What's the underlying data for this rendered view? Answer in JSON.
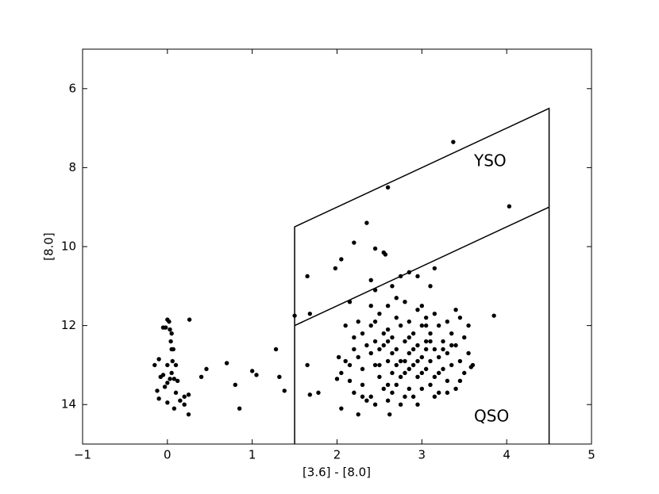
{
  "chart_data": {
    "type": "scatter",
    "xlabel": "[3.6] - [8.0]",
    "ylabel": "[8.0]",
    "xlim": [
      -1,
      5
    ],
    "ylim": [
      15,
      5
    ],
    "xticks": [
      {
        "value": -1,
        "label": "−1"
      },
      0,
      1,
      2,
      3,
      4,
      5
    ],
    "yticks": [
      6,
      8,
      10,
      12,
      14
    ],
    "color": "#000000",
    "annotations": [
      "YSO",
      "QSO"
    ],
    "lines": [
      {
        "x": [
          1.5,
          1.5,
          4.5,
          4.5
        ],
        "y": [
          15,
          9.5,
          6.5,
          15
        ]
      },
      {
        "x": [
          1.5,
          4.5
        ],
        "y": [
          12,
          9
        ]
      }
    ],
    "x": [
      0,
      0.02,
      -0.02,
      0.03,
      0.05,
      -0.05,
      0.26,
      0.05,
      0.07,
      0.04,
      -0.1,
      0.06,
      -0.15,
      0,
      0.1,
      0.05,
      -0.05,
      0.03,
      -0.08,
      0.08,
      0,
      -0.03,
      0.12,
      -0.12,
      0.1,
      0.2,
      0.25,
      0.15,
      -0.1,
      0,
      0.08,
      0.2,
      0.25,
      0.4,
      0.46,
      0.7,
      0.8,
      0.85,
      1,
      1.05,
      1.28,
      1.32,
      1.38,
      1.5,
      3.37,
      2.6,
      4.03,
      2.35,
      2.2,
      2.45,
      2.55,
      2.57,
      2.05,
      1.98,
      1.65,
      2.95,
      3.15,
      2.75,
      2.85,
      3.1,
      2.4,
      2.45,
      2.65,
      2.15,
      1.68,
      3.85,
      1.65,
      1.68,
      1.78,
      2,
      2.02,
      2.05,
      2.25,
      2.62,
      3.6,
      3.58,
      2.1,
      2.2,
      2.25,
      2.3,
      2.3,
      2.35,
      2.4,
      2.4,
      2.45,
      2.45,
      2.5,
      2.5,
      2.5,
      2.55,
      2.55,
      2.6,
      2.6,
      2.6,
      2.65,
      2.65,
      2.7,
      2.7,
      2.7,
      2.75,
      2.75,
      2.75,
      2.8,
      2.8,
      2.8,
      2.85,
      2.85,
      2.85,
      2.9,
      2.9,
      2.9,
      2.95,
      2.95,
      2.95,
      3,
      3,
      3,
      3.05,
      3.05,
      3.05,
      3.1,
      3.1,
      3.1,
      3.15,
      3.15,
      3.15,
      3.2,
      3.2,
      3.2,
      3.25,
      3.25,
      3.3,
      3.3,
      3.3,
      3.35,
      3.35,
      3.4,
      3.4,
      3.45,
      3.45,
      3.5,
      3.5,
      2.15,
      2.2,
      2.35,
      2.25,
      2.4,
      2.6,
      2.65,
      2.7,
      2.8,
      2.85,
      2.95,
      3.05,
      3,
      3.1,
      2.55,
      2.9,
      2.75,
      3.25,
      3.35,
      2.5,
      2.65,
      3.2,
      2.45,
      3.4,
      3,
      2.7,
      2.4,
      3.55,
      3.55,
      3.45,
      2.3,
      2.2,
      2.1,
      2.05,
      2.15,
      2.3,
      2.45,
      2.6,
      2.8,
      2.95,
      3.15,
      3.3,
      2.85,
      3.05,
      2.6
    ],
    "y": [
      11.85,
      11.9,
      12.05,
      12.1,
      12.2,
      12.05,
      11.85,
      12.6,
      12.6,
      12.4,
      12.85,
      12.9,
      13,
      13,
      13,
      13.2,
      13.25,
      13.35,
      13.3,
      13.35,
      13.45,
      13.55,
      13.4,
      13.65,
      13.7,
      13.8,
      13.75,
      13.9,
      13.85,
      13.95,
      14.1,
      14,
      14.25,
      13.3,
      13.1,
      12.95,
      13.5,
      14.1,
      13.15,
      13.25,
      12.6,
      13.3,
      13.65,
      11.75,
      7.35,
      8.5,
      8.98,
      9.4,
      9.9,
      10.05,
      10.15,
      10.2,
      10.32,
      10.55,
      10.75,
      10.75,
      10.55,
      10.75,
      10.65,
      11,
      10.85,
      11.1,
      11,
      11.4,
      11.7,
      11.75,
      13,
      13.75,
      13.7,
      13.35,
      12.8,
      14.1,
      14.25,
      14.25,
      13,
      13.05,
      12,
      12.3,
      12.8,
      13.1,
      13.5,
      12.5,
      12,
      13.8,
      12.4,
      13,
      11.7,
      12.6,
      13.3,
      12.2,
      13.6,
      11.5,
      12.9,
      13.9,
      12.3,
      13.2,
      11.8,
      12.6,
      13.5,
      12,
      12.9,
      14,
      11.4,
      12.4,
      13.2,
      11.9,
      12.7,
      13.6,
      12.2,
      13,
      13.8,
      11.6,
      12.5,
      13.3,
      12,
      12.8,
      13.6,
      11.8,
      12.4,
      13.1,
      12.2,
      12.9,
      13.5,
      11.7,
      12.6,
      13.3,
      12,
      12.8,
      13.7,
      12.4,
      13.1,
      11.9,
      12.7,
      13.4,
      12.2,
      13,
      12.5,
      13.6,
      11.8,
      12.9,
      12.3,
      13.2,
      13,
      13.7,
      13.9,
      11.9,
      12.7,
      12.1,
      12.7,
      13,
      12.9,
      13.1,
      12.9,
      12.6,
      13.2,
      12.4,
      12.5,
      12.6,
      13.3,
      12.6,
      12.5,
      13,
      13.7,
      13.2,
      11.9,
      11.6,
      11.5,
      11.3,
      11.5,
      12,
      12.7,
      13.4,
      12.2,
      12.6,
      12.9,
      13.2,
      13.4,
      13.8,
      14,
      13.5,
      13.8,
      14,
      13.8,
      13.7,
      12.3,
      12,
      12.4
    ]
  }
}
